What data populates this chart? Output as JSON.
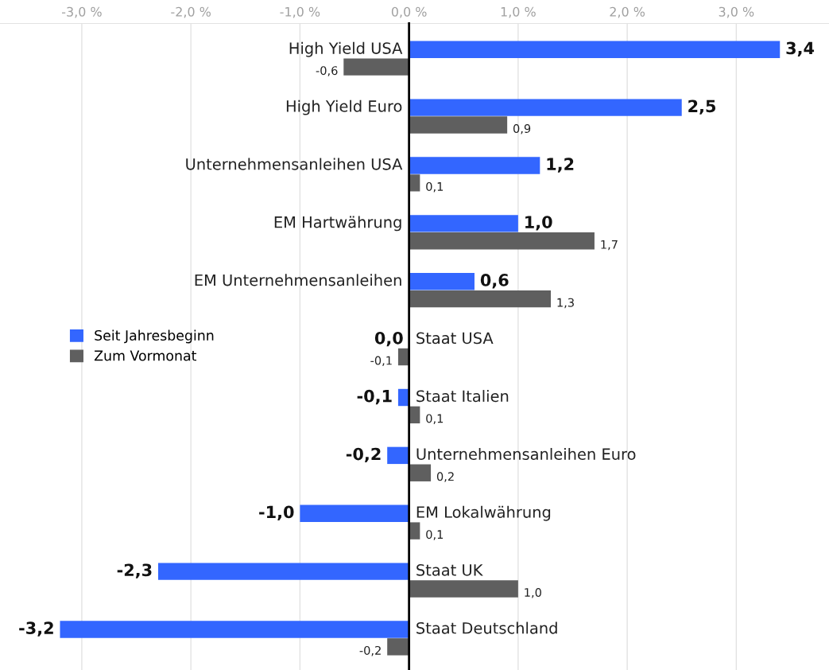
{
  "chart_data": {
    "type": "bar",
    "orientation": "horizontal",
    "categories": [
      "High Yield USA",
      "High Yield Euro",
      "Unternehmensanleihen USA",
      "EM Hartwährung",
      "EM Unternehmensanleihen",
      "Staat USA",
      "Staat Italien",
      "Unternehmensanleihen Euro",
      "EM Lokalwährung",
      "Staat UK",
      "Staat Deutschland"
    ],
    "series": [
      {
        "name": "Seit Jahresbeginn",
        "color": "#3366ff",
        "values": [
          3.4,
          2.5,
          1.2,
          1.0,
          0.6,
          0.0,
          -0.1,
          -0.2,
          -1.0,
          -2.3,
          -3.2
        ],
        "value_labels": [
          "3,4",
          "2,5",
          "1,2",
          "1,0",
          "0,6",
          "0,0",
          "-0,1",
          "-0,2",
          "-1,0",
          "-2,3",
          "-3,2"
        ]
      },
      {
        "name": "Zum Vormonat",
        "color": "#5f5f5f",
        "values": [
          -0.6,
          0.9,
          0.1,
          1.7,
          1.3,
          -0.1,
          0.1,
          0.2,
          0.1,
          1.0,
          -0.2
        ],
        "value_labels": [
          "-0,6",
          "0,9",
          "0,1",
          "1,7",
          "1,3",
          "-0,1",
          "0,1",
          "0,2",
          "0,1",
          "1,0",
          "-0,2"
        ]
      }
    ],
    "xlim": [
      -3.75,
      3.85
    ],
    "xticks": [
      {
        "value": -3,
        "label": "-3,0 %"
      },
      {
        "value": -2,
        "label": "-2,0 %"
      },
      {
        "value": -1,
        "label": "-1,0 %"
      },
      {
        "value": 0,
        "label": "0,0 %"
      },
      {
        "value": 1,
        "label": "1,0 %"
      },
      {
        "value": 2,
        "label": "2,0 %"
      },
      {
        "value": 3,
        "label": "3,0 %"
      }
    ],
    "grid": "x",
    "legend": "left"
  }
}
